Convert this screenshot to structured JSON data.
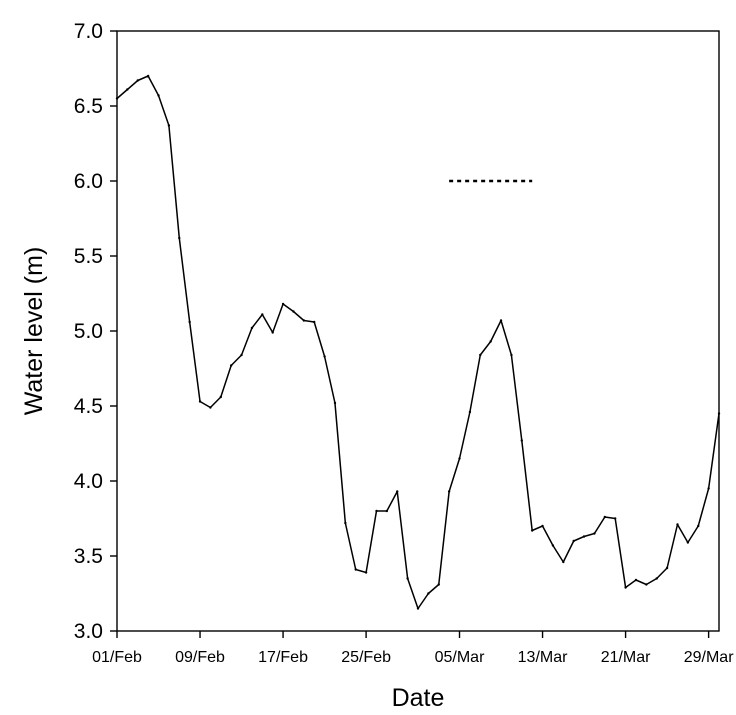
{
  "chart_data": {
    "type": "line",
    "xlabel": "Date",
    "ylabel": "Water level (m)",
    "ylim": [
      3.0,
      7.0
    ],
    "xlim": [
      "01/Feb",
      "30/Mar"
    ],
    "grid": false,
    "y_ticks": [
      "3.0",
      "3.5",
      "4.0",
      "4.5",
      "5.0",
      "5.5",
      "6.0",
      "6.5",
      "7.0"
    ],
    "x_ticks": [
      "01/Feb",
      "09/Feb",
      "17/Feb",
      "25/Feb",
      "05/Mar",
      "13/Mar",
      "21/Mar",
      "29/Mar"
    ],
    "series": [
      {
        "x": [
          "01/Feb",
          "02/Feb",
          "03/Feb",
          "04/Feb",
          "05/Feb",
          "06/Feb",
          "07/Feb",
          "08/Feb",
          "09/Feb",
          "10/Feb",
          "11/Feb",
          "12/Feb",
          "13/Feb",
          "14/Feb",
          "15/Feb",
          "16/Feb",
          "17/Feb",
          "18/Feb",
          "19/Feb",
          "20/Feb",
          "21/Feb",
          "22/Feb",
          "23/Feb",
          "24/Feb",
          "25/Feb",
          "26/Feb",
          "27/Feb",
          "28/Feb",
          "29/Feb",
          "01/Mar",
          "02/Mar",
          "03/Mar",
          "04/Mar",
          "05/Mar",
          "06/Mar",
          "07/Mar",
          "08/Mar",
          "09/Mar",
          "10/Mar",
          "11/Mar",
          "12/Mar",
          "13/Mar",
          "14/Mar",
          "15/Mar",
          "16/Mar",
          "17/Mar",
          "18/Mar",
          "19/Mar",
          "20/Mar",
          "21/Mar",
          "22/Mar",
          "23/Mar",
          "24/Mar",
          "25/Mar",
          "26/Mar",
          "27/Mar",
          "28/Mar",
          "29/Mar",
          "30/Mar"
        ],
        "values": [
          6.55,
          6.61,
          6.67,
          6.7,
          6.57,
          6.37,
          5.62,
          5.06,
          4.53,
          4.49,
          4.56,
          4.77,
          4.84,
          5.02,
          5.11,
          4.99,
          5.18,
          5.13,
          5.07,
          5.06,
          4.83,
          4.52,
          3.72,
          3.41,
          3.39,
          3.8,
          3.8,
          3.93,
          3.35,
          3.15,
          3.25,
          3.31,
          3.93,
          4.15,
          4.46,
          4.84,
          4.93,
          5.07,
          4.84,
          4.27,
          3.67,
          3.7,
          3.57,
          3.46,
          3.6,
          3.63,
          3.65,
          3.76,
          3.75,
          3.29,
          3.34,
          3.31,
          3.35,
          3.42,
          3.71,
          3.59,
          3.7,
          3.95,
          4.45
        ]
      }
    ],
    "annotations": [
      {
        "type": "dotted-line",
        "x_from": "04/Mar",
        "x_to": "12/Mar",
        "y": 6.0
      }
    ]
  }
}
